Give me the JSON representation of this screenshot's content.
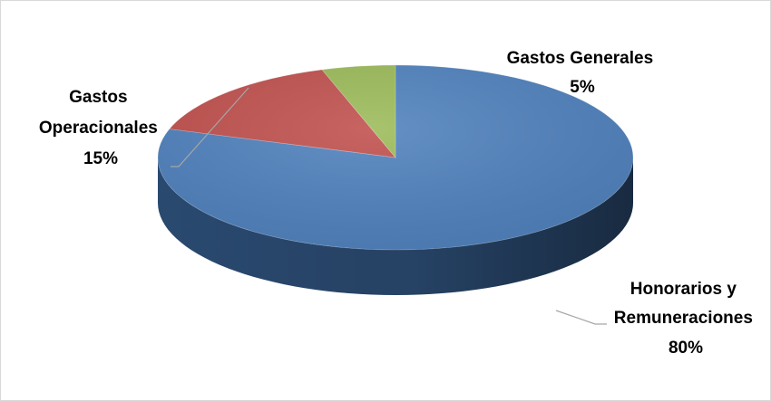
{
  "chart_data": {
    "type": "pie",
    "style": "3d",
    "title": "",
    "start_angle_deg": 0,
    "direction": "clockwise",
    "legend": "none",
    "data_labels": "category name and percentage, outside with leader lines",
    "slices": [
      {
        "name": "Honorarios y Remuneraciones",
        "label_lines": [
          "Honorarios y",
          "Remuneraciones"
        ],
        "value": 80,
        "percent_label": "80%",
        "color": "#4F81BD",
        "side_color": "#2C4D75"
      },
      {
        "name": "Gastos Operacionales",
        "label_lines": [
          "Gastos",
          "Operacionales"
        ],
        "value": 15,
        "percent_label": "15%",
        "color": "#C0504D",
        "side_color": "#7A2D2B"
      },
      {
        "name": "Gastos Generales",
        "label_lines": [
          "Gastos Generales"
        ],
        "value": 5,
        "percent_label": "5%",
        "color": "#9BBB59",
        "side_color": "#5E7A30"
      }
    ]
  }
}
